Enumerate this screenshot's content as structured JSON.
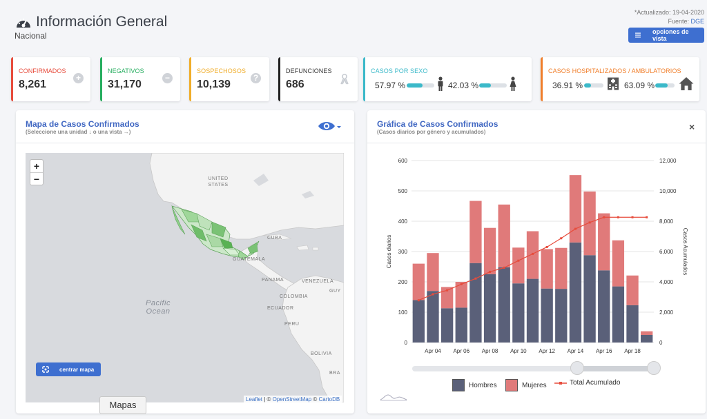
{
  "header": {
    "title": "Información General",
    "subtitle": "Nacional",
    "updated": "*Actualizado: 19-04-2020",
    "source_label": "Fuente:",
    "source_link": "DGE",
    "view_button": "opciones de vista"
  },
  "cards": {
    "confirmados": {
      "title": "CONFIRMADOS",
      "value": "8,261",
      "color": "#e74c3c"
    },
    "negativos": {
      "title": "NEGATIVOS",
      "value": "31,170",
      "color": "#27ae60"
    },
    "sospechosos": {
      "title": "SOSPECHOSOS",
      "value": "10,139",
      "color": "#f0ad2a"
    },
    "defunciones": {
      "title": "DEFUNCIONES",
      "value": "686",
      "color": "#333333"
    },
    "sexo": {
      "title": "CASOS POR SEXO",
      "men_pct": "57.97 %",
      "women_pct": "42.03 %",
      "men_level": 0.5797,
      "women_level": 0.4203,
      "color": "#3bb9c9"
    },
    "hospitalizados": {
      "title": "CASOS HOSPITALIZADOS / AMBULATORIOS",
      "hosp_pct": "36.91 %",
      "amb_pct": "63.09 %",
      "hosp_level": 0.3691,
      "amb_level": 0.6309,
      "color": "#f07e2a"
    }
  },
  "map_panel": {
    "title": "Mapa de Casos Confirmados",
    "subtitle": "(Seleccione una unidad ↓ o una vista →)",
    "zoom_in": "+",
    "zoom_out": "−",
    "labels": [
      "UNITED STATES",
      "CUBA",
      "GUATEMALA",
      "PANAMA",
      "VENEZUELA",
      "COLOMBIA",
      "ECUADOR",
      "PERU",
      "BOLIVIA",
      "Pacific Ocean",
      "GUY",
      "BRA"
    ],
    "center_button": "centrar mapa",
    "attribution_leaflet": "Leaflet",
    "attribution_sep": " | © ",
    "attribution_osm": "OpenStreetMap",
    "attribution_mid": " © ",
    "attribution_carto": "CartoDB",
    "tooltip": "Mapas"
  },
  "chart_panel": {
    "title": "Gráfica de Casos Confirmados",
    "subtitle": "(Casos diarios por género y acumulados)",
    "close": "×"
  },
  "chart_data": {
    "type": "bar",
    "categories": [
      "Apr 03",
      "Apr 04",
      "Apr 05",
      "Apr 06",
      "Apr 07",
      "Apr 08",
      "Apr 09",
      "Apr 10",
      "Apr 11",
      "Apr 12",
      "Apr 13",
      "Apr 14",
      "Apr 15",
      "Apr 16",
      "Apr 17",
      "Apr 18",
      "Apr 19"
    ],
    "xtick_labels": [
      "Apr 04",
      "Apr 06",
      "Apr 08",
      "Apr 10",
      "Apr 12",
      "Apr 14",
      "Apr 16",
      "Apr 18"
    ],
    "series": [
      {
        "name": "Hombres",
        "type": "bar",
        "values": [
          140,
          170,
          113,
          115,
          262,
          225,
          248,
          195,
          210,
          178,
          177,
          330,
          288,
          238,
          185,
          123,
          25
        ],
        "color": "#5a6079"
      },
      {
        "name": "Mujeres",
        "type": "bar",
        "values": [
          120,
          125,
          70,
          85,
          205,
          153,
          207,
          118,
          157,
          130,
          135,
          222,
          210,
          188,
          152,
          98,
          12
        ],
        "color": "#e07a7a"
      },
      {
        "name": "Total Acumulado",
        "type": "line",
        "axis": "right",
        "values": [
          2785,
          3181,
          3441,
          3844,
          4219,
          4661,
          4937,
          5399,
          5847,
          6297,
          6875,
          7497,
          7916,
          8261,
          8261,
          8261,
          8261
        ],
        "color": "#e74c3c"
      }
    ],
    "ylabel": "Casos diarios",
    "y2label": "Casos Acumulados",
    "ylim": [
      0,
      600
    ],
    "y2lim": [
      0,
      12000
    ],
    "yticks": [
      "0",
      "100",
      "200",
      "300",
      "400",
      "500",
      "600"
    ],
    "y2ticks": [
      "0",
      "2,000",
      "4,000",
      "6,000",
      "8,000",
      "10,000",
      "12,000"
    ],
    "stacked": true,
    "grid": true,
    "legend_position": "bottom"
  }
}
